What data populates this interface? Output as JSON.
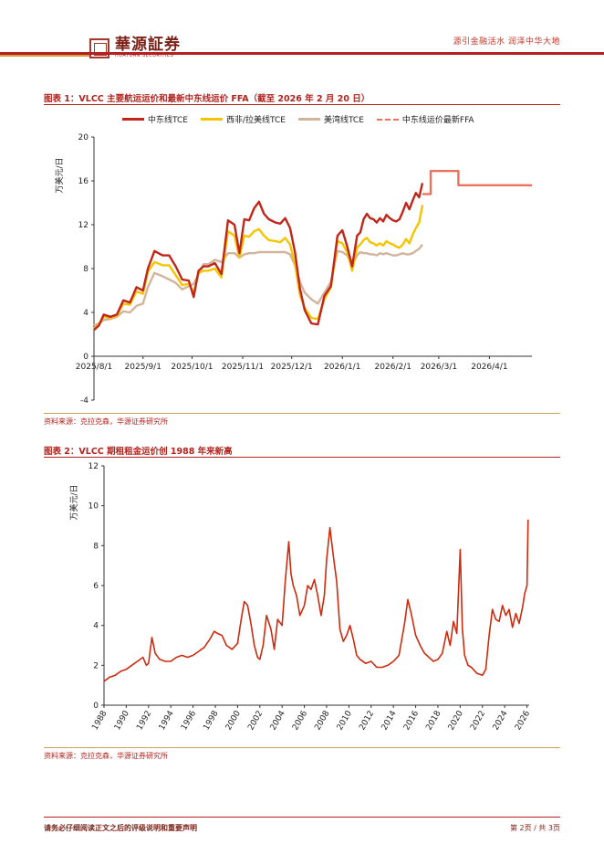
{
  "header": {
    "brand_cn": "華源証券",
    "brand_en": "HUAYUAN SECURITIES",
    "slogan": "源引金融活水 润泽中华大地"
  },
  "figure1": {
    "title": "图表 1：VLCC 主要航运运价和最新中东线运价 FFA（截至 2026 年 2 月 20 日）",
    "source": "资料来源：克拉克森，华源证券研究所"
  },
  "figure2": {
    "title": "图表 2：VLCC 期租租金运价创 1988 年来新高",
    "source": "资料来源：克拉克森，华源证券研究所"
  },
  "footer": {
    "disclaimer": "请务必仔细阅读正文之后的评级说明和重要声明",
    "page": "第 2页 / 共 3页"
  },
  "colors": {
    "red": "#c0261a",
    "yellow": "#f5c400",
    "tan": "#d3b49a",
    "ffa": "#e8735a",
    "long_series": "#cc2b0e"
  },
  "chart_data": [
    {
      "type": "line",
      "title": "VLCC主要航运运价和最新中东线运价FFA（截至2026年2月20日）",
      "ylabel": "万美元/日",
      "ylim": [
        -4,
        20
      ],
      "yticks": [
        "20",
        "16",
        "12",
        "8",
        "4",
        "0",
        "-4"
      ],
      "x_tick_labels": [
        "2025/8/1",
        "2025/9/1",
        "2025/10/1",
        "2025/11/1",
        "2025/12/1",
        "2026/1/1",
        "2026/2/1",
        "2026/3/1",
        "2026/4/1"
      ],
      "legend": [
        "中东线TCE",
        "西非/拉美线TCE",
        "美湾线TCE",
        "中东线运价最新FFA"
      ],
      "series": [
        {
          "name": "中东线TCE",
          "x": [
            0,
            3,
            6,
            10,
            14,
            18,
            22,
            26,
            30,
            33,
            37,
            42,
            46,
            50,
            54,
            58,
            61,
            64,
            67,
            70,
            74,
            78,
            82,
            86,
            89,
            92,
            95,
            98,
            101,
            104,
            107,
            111,
            114,
            117,
            120,
            123,
            126,
            129,
            133,
            137,
            141,
            145,
            149,
            152,
            155,
            158,
            161,
            163,
            165,
            167,
            169,
            171,
            173,
            175,
            177,
            179,
            181,
            183,
            185,
            187,
            189,
            191,
            193,
            195,
            197,
            199,
            201
          ],
          "y": [
            2.4,
            2.8,
            3.8,
            3.6,
            3.8,
            5.1,
            4.9,
            6.3,
            6.0,
            8.0,
            9.6,
            9.2,
            9.2,
            8.2,
            7.0,
            6.9,
            5.4,
            7.8,
            8.2,
            8.2,
            8.5,
            7.5,
            12.4,
            12.0,
            9.4,
            12.5,
            12.4,
            13.5,
            14.1,
            13.0,
            12.5,
            12.2,
            12.1,
            12.6,
            11.7,
            9.5,
            6.2,
            4.2,
            3.0,
            2.9,
            5.5,
            6.4,
            11.0,
            11.5,
            10.0,
            8.2,
            11.0,
            11.3,
            12.5,
            13.0,
            12.6,
            12.5,
            12.2,
            12.6,
            12.3,
            12.9,
            12.6,
            12.4,
            12.3,
            12.5,
            13.2,
            14.0,
            13.4,
            14.2,
            14.9,
            14.5,
            15.8
          ]
        },
        {
          "name": "西非/拉美线TCE",
          "x": [
            0,
            3,
            6,
            10,
            14,
            18,
            22,
            26,
            30,
            33,
            37,
            42,
            46,
            50,
            54,
            58,
            61,
            64,
            67,
            70,
            74,
            78,
            82,
            86,
            89,
            92,
            95,
            98,
            101,
            104,
            107,
            111,
            114,
            117,
            120,
            123,
            126,
            129,
            133,
            137,
            141,
            145,
            149,
            152,
            155,
            158,
            161,
            163,
            165,
            167,
            169,
            171,
            173,
            175,
            177,
            179,
            181,
            183,
            185,
            187,
            189,
            191,
            193,
            195,
            197,
            199,
            201
          ],
          "y": [
            2.5,
            2.9,
            3.6,
            3.5,
            3.7,
            4.8,
            4.7,
            5.9,
            5.7,
            7.7,
            8.6,
            8.3,
            8.3,
            7.4,
            6.5,
            6.6,
            5.8,
            7.6,
            7.8,
            7.8,
            8.0,
            7.2,
            11.4,
            11.0,
            9.0,
            11.0,
            10.9,
            11.4,
            11.6,
            11.0,
            10.6,
            10.5,
            10.4,
            10.8,
            10.2,
            8.4,
            5.6,
            4.4,
            3.5,
            3.4,
            5.2,
            6.3,
            10.5,
            10.3,
            9.5,
            7.8,
            9.9,
            10.2,
            10.6,
            10.8,
            10.4,
            10.3,
            10.1,
            10.3,
            10.1,
            10.5,
            10.3,
            10.2,
            10.0,
            9.9,
            10.2,
            10.7,
            10.3,
            11.1,
            11.7,
            12.2,
            13.8
          ]
        },
        {
          "name": "美湾线TCE",
          "x": [
            0,
            3,
            6,
            10,
            14,
            18,
            22,
            26,
            30,
            33,
            37,
            42,
            46,
            50,
            54,
            58,
            61,
            64,
            67,
            70,
            74,
            78,
            82,
            86,
            89,
            92,
            95,
            98,
            101,
            104,
            107,
            111,
            114,
            117,
            120,
            123,
            126,
            129,
            133,
            137,
            141,
            145,
            149,
            152,
            155,
            158,
            161,
            163,
            165,
            167,
            169,
            171,
            173,
            175,
            177,
            179,
            181,
            183,
            185,
            187,
            189,
            191,
            193,
            195,
            197,
            199,
            201
          ],
          "y": [
            2.8,
            3.0,
            3.3,
            3.4,
            3.6,
            4.1,
            4.0,
            4.6,
            4.8,
            6.3,
            7.6,
            7.3,
            7.0,
            6.7,
            6.1,
            6.4,
            6.6,
            7.5,
            8.4,
            8.4,
            8.8,
            8.6,
            9.4,
            9.4,
            9.0,
            9.3,
            9.4,
            9.4,
            9.5,
            9.5,
            9.5,
            9.5,
            9.5,
            9.5,
            9.3,
            8.3,
            6.8,
            5.8,
            5.2,
            4.8,
            5.8,
            6.8,
            9.6,
            9.5,
            9.2,
            8.3,
            9.2,
            9.5,
            9.4,
            9.4,
            9.3,
            9.3,
            9.2,
            9.4,
            9.3,
            9.4,
            9.3,
            9.2,
            9.2,
            9.3,
            9.4,
            9.3,
            9.3,
            9.4,
            9.6,
            9.8,
            10.2
          ]
        },
        {
          "name": "中东线运价最新FFA",
          "style": "dashed",
          "x": [
            201,
            206,
            206,
            223,
            223,
            238,
            238,
            268
          ],
          "y": [
            14.8,
            14.8,
            16.9,
            16.9,
            15.6,
            15.6,
            15.6,
            15.6
          ]
        }
      ]
    },
    {
      "type": "line",
      "title": "VLCC期租租金运价创1988年来新高",
      "ylabel": "万美元/日",
      "ylim": [
        0,
        12
      ],
      "yticks": [
        "12",
        "10",
        "8",
        "6",
        "4",
        "2",
        "0"
      ],
      "xlim": [
        1988,
        2026.2
      ],
      "x_tick_labels": [
        "1988",
        "1990",
        "1992",
        "1994",
        "1996",
        "1998",
        "2000",
        "2002",
        "2004",
        "2006",
        "2008",
        "2010",
        "2012",
        "2014",
        "2016",
        "2018",
        "2020",
        "2022",
        "2024",
        "2026"
      ],
      "series": [
        {
          "name": "VLCC期租租金",
          "x": [
            1988.0,
            1988.5,
            1989.0,
            1989.5,
            1990.0,
            1990.5,
            1991.0,
            1991.5,
            1991.8,
            1992.0,
            1992.3,
            1992.6,
            1993.0,
            1993.5,
            1994.0,
            1994.5,
            1995.0,
            1995.5,
            1996.0,
            1996.5,
            1997.0,
            1997.5,
            1997.9,
            1998.2,
            1998.6,
            1999.0,
            1999.5,
            2000.0,
            2000.3,
            2000.6,
            2000.9,
            2001.2,
            2001.5,
            2001.8,
            2002.0,
            2002.3,
            2002.6,
            2003.0,
            2003.3,
            2003.6,
            2004.0,
            2004.3,
            2004.6,
            2004.8,
            2005.0,
            2005.3,
            2005.6,
            2006.0,
            2006.3,
            2006.6,
            2006.9,
            2007.2,
            2007.5,
            2007.8,
            2008.0,
            2008.3,
            2008.6,
            2008.9,
            2009.2,
            2009.5,
            2009.8,
            2010.1,
            2010.4,
            2010.7,
            2011.0,
            2011.5,
            2012.0,
            2012.5,
            2013.0,
            2013.5,
            2014.0,
            2014.5,
            2015.0,
            2015.3,
            2015.6,
            2016.0,
            2016.4,
            2016.8,
            2017.2,
            2017.6,
            2018.0,
            2018.4,
            2018.8,
            2019.1,
            2019.4,
            2019.7,
            2020.0,
            2020.2,
            2020.4,
            2020.7,
            2021.0,
            2021.5,
            2022.0,
            2022.3,
            2022.6,
            2022.9,
            2023.2,
            2023.5,
            2023.8,
            2024.1,
            2024.4,
            2024.7,
            2025.0,
            2025.3,
            2025.6,
            2025.8,
            2026.0,
            2026.1
          ],
          "y": [
            1.2,
            1.4,
            1.5,
            1.7,
            1.8,
            2.0,
            2.2,
            2.4,
            2.0,
            2.1,
            3.4,
            2.6,
            2.3,
            2.2,
            2.2,
            2.4,
            2.5,
            2.4,
            2.5,
            2.7,
            2.9,
            3.3,
            3.7,
            3.6,
            3.5,
            3.0,
            2.8,
            3.1,
            4.2,
            5.2,
            5.0,
            4.1,
            3.0,
            2.4,
            2.3,
            3.0,
            4.5,
            3.8,
            2.8,
            4.3,
            4.0,
            6.3,
            8.2,
            6.6,
            6.0,
            5.5,
            4.5,
            5.0,
            6.0,
            5.8,
            6.3,
            5.5,
            4.5,
            5.5,
            7.3,
            8.9,
            7.5,
            6.2,
            3.8,
            3.2,
            3.5,
            4.0,
            3.3,
            2.5,
            2.3,
            2.1,
            2.2,
            1.9,
            1.9,
            2.0,
            2.2,
            2.5,
            4.1,
            5.3,
            4.6,
            3.5,
            3.0,
            2.6,
            2.4,
            2.2,
            2.3,
            2.6,
            3.7,
            3.0,
            4.2,
            3.6,
            7.8,
            3.8,
            2.5,
            2.0,
            1.9,
            1.6,
            1.5,
            1.8,
            3.5,
            4.8,
            4.3,
            4.2,
            5.0,
            4.5,
            4.8,
            3.9,
            4.6,
            4.1,
            4.9,
            5.6,
            6.0,
            9.3
          ]
        }
      ]
    }
  ]
}
